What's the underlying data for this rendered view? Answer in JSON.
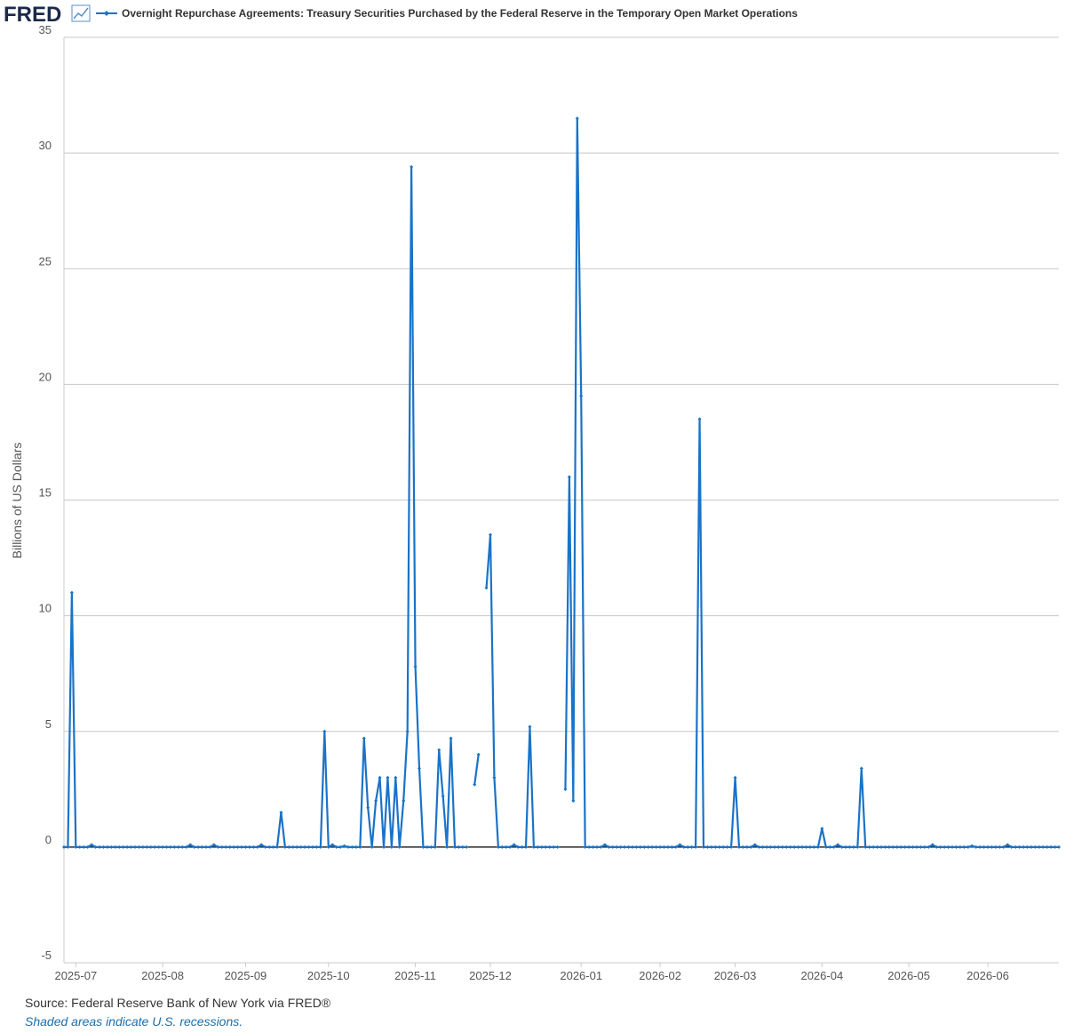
{
  "header": {
    "logo": "FRED"
  },
  "chart_data": {
    "type": "line",
    "ylabel": "Billions of US Dollars",
    "ylim": [
      -5,
      35
    ],
    "yticks": [
      -5,
      0,
      5,
      10,
      15,
      20,
      25,
      30,
      35
    ],
    "grid": true,
    "categories": [
      null,
      null,
      null,
      "2025-07",
      null,
      null,
      null,
      null,
      null,
      null,
      null,
      null,
      null,
      null,
      null,
      null,
      null,
      null,
      null,
      null,
      null,
      null,
      null,
      null,
      null,
      "2025-08",
      null,
      null,
      null,
      null,
      null,
      null,
      null,
      null,
      null,
      null,
      null,
      null,
      null,
      null,
      null,
      null,
      null,
      null,
      null,
      null,
      "2025-09",
      null,
      null,
      null,
      null,
      null,
      null,
      null,
      null,
      null,
      null,
      null,
      null,
      null,
      null,
      null,
      null,
      null,
      null,
      null,
      null,
      "2025-10",
      null,
      null,
      null,
      null,
      null,
      null,
      null,
      null,
      null,
      null,
      null,
      null,
      null,
      null,
      null,
      null,
      null,
      null,
      null,
      null,
      null,
      "2025-11",
      null,
      null,
      null,
      null,
      null,
      null,
      null,
      null,
      null,
      null,
      null,
      null,
      null,
      null,
      null,
      null,
      null,
      null,
      "2025-12",
      null,
      null,
      null,
      null,
      null,
      null,
      null,
      null,
      null,
      null,
      null,
      null,
      null,
      null,
      null,
      null,
      null,
      null,
      null,
      null,
      null,
      null,
      "2026-01",
      null,
      null,
      null,
      null,
      null,
      null,
      null,
      null,
      null,
      null,
      null,
      null,
      null,
      null,
      null,
      null,
      null,
      null,
      null,
      "2026-02",
      null,
      null,
      null,
      null,
      null,
      null,
      null,
      null,
      null,
      null,
      null,
      null,
      null,
      null,
      null,
      null,
      null,
      null,
      "2026-03",
      null,
      null,
      null,
      null,
      null,
      null,
      null,
      null,
      null,
      null,
      null,
      null,
      null,
      null,
      null,
      null,
      null,
      null,
      null,
      null,
      null,
      "2026-04",
      null,
      null,
      null,
      null,
      null,
      null,
      null,
      null,
      null,
      null,
      null,
      null,
      null,
      null,
      null,
      null,
      null,
      null,
      null,
      null,
      null,
      "2026-05",
      null,
      null,
      null,
      null,
      null,
      null,
      null,
      null,
      null,
      null,
      null,
      null,
      null,
      null,
      null,
      null,
      null,
      null,
      null,
      "2026-06",
      null,
      null,
      null,
      null,
      null,
      null,
      null,
      null,
      null,
      null,
      null,
      null,
      null,
      null,
      null,
      null,
      null,
      null
    ],
    "series": [
      {
        "name": "Overnight Repurchase Agreements: Treasury Securities Purchased by the Federal Reserve in the Temporary Open Market Operations",
        "color": "#1a73c8",
        "values": [
          0,
          0,
          11.0,
          0,
          0,
          0,
          0,
          0.1,
          0,
          0,
          0,
          0,
          0,
          0,
          0,
          0,
          0,
          0,
          0,
          0,
          0,
          0,
          0,
          0,
          0,
          0,
          0,
          0,
          0,
          0,
          0,
          0,
          0.1,
          0,
          0,
          0,
          0,
          0,
          0.1,
          0,
          0,
          0,
          0,
          0,
          0,
          0,
          0,
          0,
          0,
          0,
          0.1,
          0,
          0,
          0,
          0,
          1.5,
          0,
          0,
          0,
          0,
          0,
          0,
          0,
          0,
          0,
          0,
          5.0,
          0,
          0.1,
          0,
          0,
          0.05,
          0,
          0,
          0,
          0,
          4.7,
          1.7,
          0,
          2.0,
          3.0,
          0,
          3.0,
          0,
          3.0,
          0,
          2.0,
          5.0,
          29.4,
          7.8,
          3.4,
          0,
          0,
          0,
          0,
          4.2,
          2.2,
          0,
          4.7,
          0,
          0,
          0,
          0,
          null,
          2.7,
          4.0,
          null,
          11.2,
          13.5,
          3.0,
          0,
          0,
          0,
          0,
          0.1,
          0,
          0,
          0,
          5.2,
          0,
          0,
          0,
          0,
          0,
          0,
          0,
          null,
          2.5,
          16.0,
          2.0,
          31.5,
          19.5,
          0,
          0,
          0,
          0,
          0,
          0.1,
          0,
          0,
          0,
          0,
          0,
          0,
          0,
          0,
          0,
          0,
          0,
          0,
          0,
          0,
          0,
          0,
          0,
          0,
          0.1,
          0,
          0,
          0,
          0,
          18.5,
          0,
          0,
          0,
          0,
          0,
          0,
          0,
          0,
          3.0,
          0,
          0,
          0,
          0,
          0.1,
          0,
          0,
          0,
          0,
          0,
          0,
          0,
          0,
          0,
          0,
          0,
          0,
          0,
          0,
          0,
          0,
          0.8,
          0,
          0,
          0,
          0.1,
          0,
          0,
          0,
          0,
          0,
          3.4,
          0,
          0,
          0,
          0,
          0,
          0,
          0,
          0,
          0,
          0,
          0,
          0,
          0,
          0,
          0,
          0,
          0,
          0.1,
          0,
          0,
          0,
          0,
          0,
          0,
          0,
          0,
          0,
          0.05,
          0,
          0,
          0,
          0,
          0,
          0,
          0,
          0,
          0.1,
          0,
          0,
          0,
          0,
          0,
          0,
          0,
          0,
          0,
          0,
          0,
          0,
          0
        ]
      }
    ]
  },
  "footer": {
    "source": "Source: Federal Reserve Bank of New York via FRED®",
    "note": "Shaded areas indicate U.S. recessions."
  }
}
